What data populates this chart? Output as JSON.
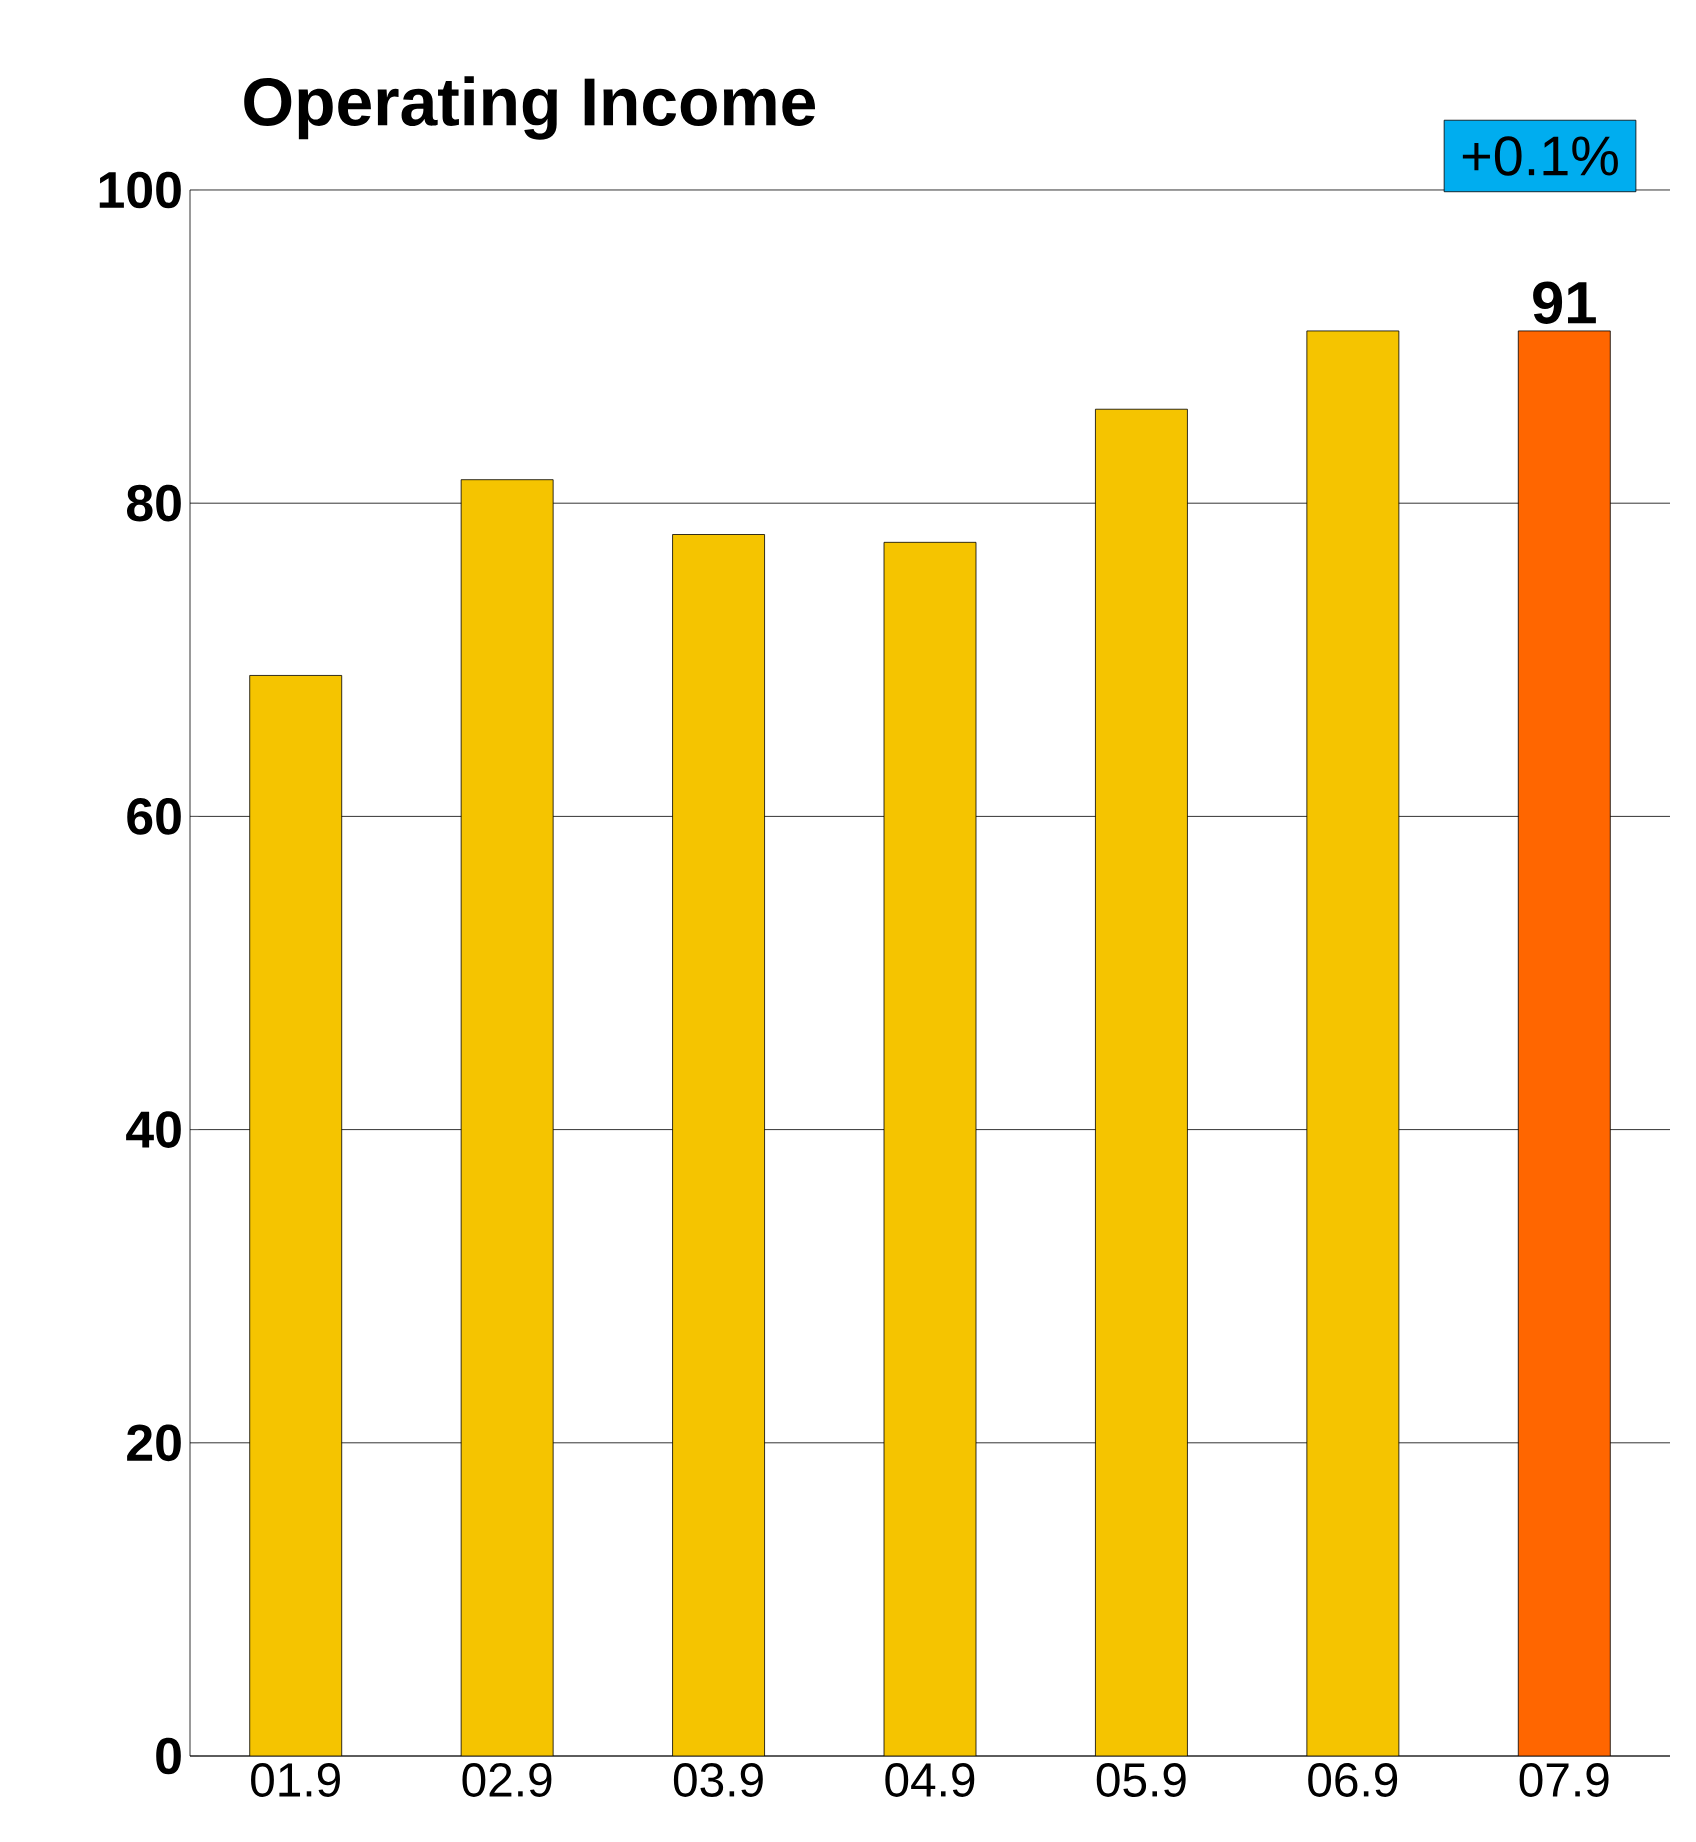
{
  "chart_data": {
    "type": "bar",
    "title": "Operating Income",
    "categories": [
      "01.9",
      "02.9",
      "03.9",
      "04.9",
      "05.9",
      "06.9",
      "07.9"
    ],
    "values": [
      69,
      81.5,
      78,
      77.5,
      86,
      91,
      91
    ],
    "colors": [
      "#f5c400",
      "#f5c400",
      "#f5c400",
      "#f5c400",
      "#f5c400",
      "#f5c400",
      "#ff6600"
    ],
    "value_labels": [
      null,
      null,
      null,
      null,
      null,
      null,
      "91"
    ],
    "annotations": [
      "+0.1%"
    ],
    "ylim": [
      0,
      100
    ],
    "yticks": [
      0,
      20,
      40,
      60,
      80,
      100
    ],
    "grid": "y"
  }
}
